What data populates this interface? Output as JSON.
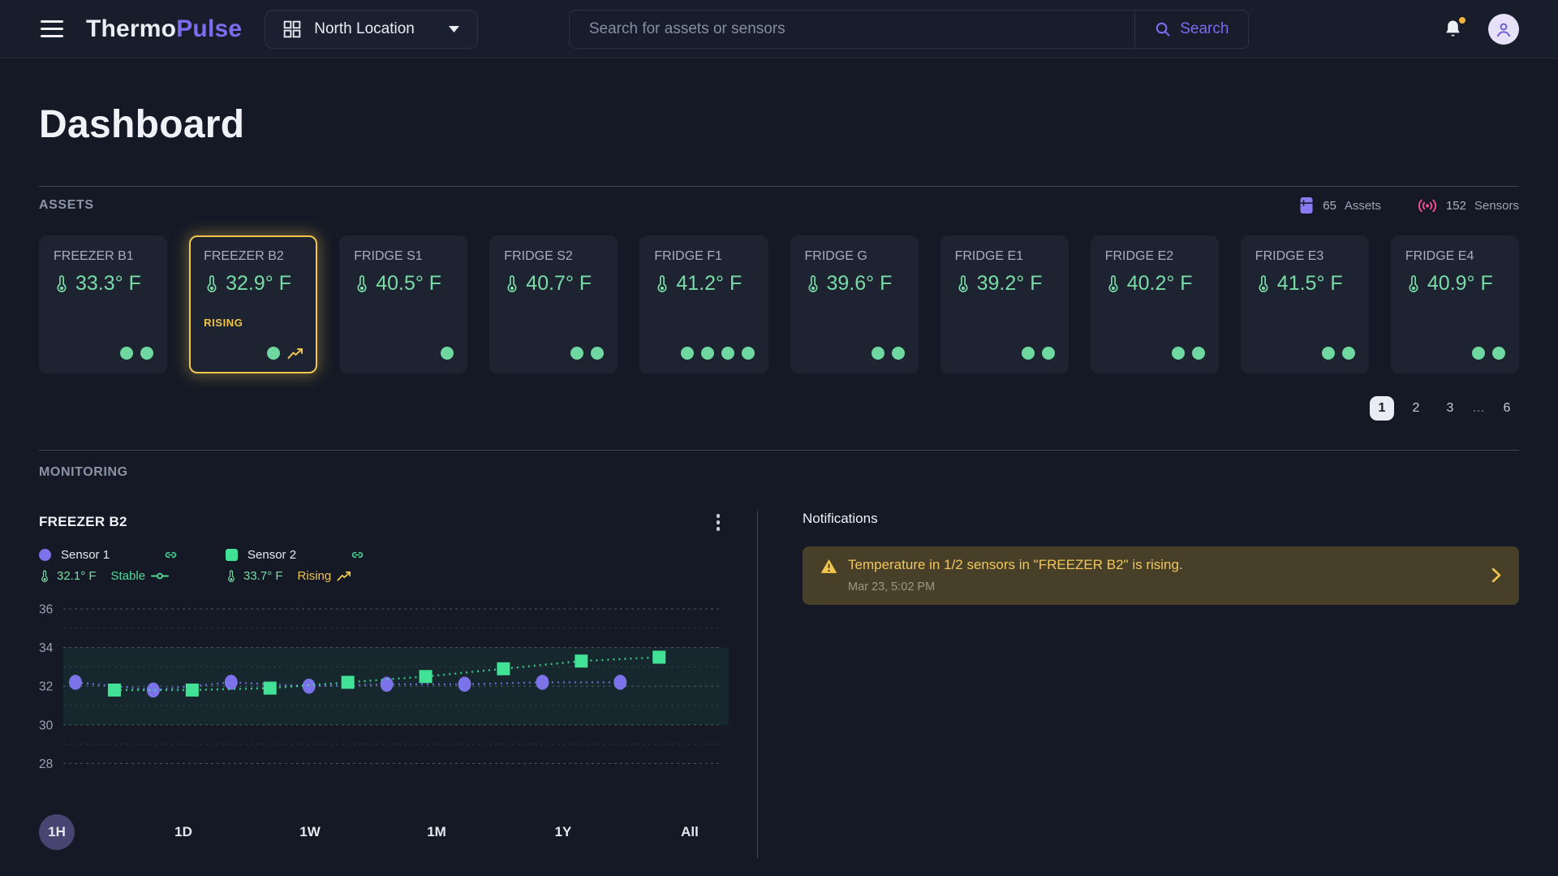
{
  "navbar": {
    "brand": {
      "part1": "Thermo",
      "part2": "Pulse"
    },
    "location_selector": {
      "label": "North Location"
    },
    "search": {
      "placeholder": "Search for assets or sensors",
      "button_label": "Search"
    }
  },
  "page": {
    "title": "Dashboard"
  },
  "assets": {
    "section_label": "ASSETS",
    "stats": [
      {
        "icon": "fridge-icon",
        "value": "65",
        "label": "Assets"
      },
      {
        "icon": "signal-icon",
        "value": "152",
        "label": "Sensors"
      }
    ],
    "cards": [
      {
        "name": "FREEZER B1",
        "temp": "33.3° F",
        "dots": 2,
        "active": false,
        "status": "",
        "trend": false
      },
      {
        "name": "FREEZER B2",
        "temp": "32.9° F",
        "dots": 1,
        "active": true,
        "status": "RISING",
        "trend": true
      },
      {
        "name": "FRIDGE S1",
        "temp": "40.5° F",
        "dots": 1,
        "active": false,
        "status": "",
        "trend": false
      },
      {
        "name": "FRIDGE S2",
        "temp": "40.7° F",
        "dots": 2,
        "active": false,
        "status": "",
        "trend": false
      },
      {
        "name": "FRIDGE F1",
        "temp": "41.2° F",
        "dots": 4,
        "active": false,
        "status": "",
        "trend": false
      },
      {
        "name": "FRIDGE G",
        "temp": "39.6° F",
        "dots": 2,
        "active": false,
        "status": "",
        "trend": false
      },
      {
        "name": "FRIDGE E1",
        "temp": "39.2° F",
        "dots": 2,
        "active": false,
        "status": "",
        "trend": false
      },
      {
        "name": "FRIDGE E2",
        "temp": "40.2° F",
        "dots": 2,
        "active": false,
        "status": "",
        "trend": false
      },
      {
        "name": "FRIDGE E3",
        "temp": "41.5° F",
        "dots": 2,
        "active": false,
        "status": "",
        "trend": false
      },
      {
        "name": "FRIDGE E4",
        "temp": "40.9° F",
        "dots": 2,
        "active": false,
        "status": "",
        "trend": false
      }
    ],
    "pagination": {
      "pages": [
        "1",
        "2",
        "3",
        "…",
        "6"
      ],
      "active": "1"
    }
  },
  "monitoring": {
    "section_label": "MONITORING",
    "panel_title": "FREEZER B2",
    "legend": [
      {
        "name": "Sensor 1",
        "temp": "32.1° F",
        "trend": "Stable",
        "marker": "circle",
        "color": "#7c72e9"
      },
      {
        "name": "Sensor 2",
        "temp": "33.7° F",
        "trend": "Rising",
        "marker": "square",
        "color": "#41e296"
      }
    ],
    "time_ranges": [
      "1H",
      "1D",
      "1W",
      "1M",
      "1Y",
      "All"
    ],
    "active_range": "1H"
  },
  "notifications": {
    "title": "Notifications",
    "items": [
      {
        "message": "Temperature in 1/2 sensors in \"FREEZER B2\" is rising.",
        "time": "Mar 23, 5:02 PM"
      }
    ]
  },
  "chart_data": {
    "type": "line",
    "title": "FREEZER B2",
    "xlabel": "",
    "ylabel": "",
    "ylim": [
      27,
      37
    ],
    "yticks": [
      28,
      30,
      32,
      34,
      36
    ],
    "xticklabels": [],
    "grid": "dotted-horizontal",
    "safe_band": [
      30,
      34
    ],
    "legend_position": "top-left",
    "series": [
      {
        "name": "Sensor 1",
        "color": "#7c72e9",
        "marker": "circle",
        "style": "dotted",
        "x": [
          0,
          2,
          4,
          6,
          8,
          10,
          12,
          14
        ],
        "values": [
          32.2,
          31.8,
          32.2,
          32.0,
          32.1,
          32.1,
          32.2,
          32.2
        ]
      },
      {
        "name": "Sensor 2",
        "color": "#41e296",
        "marker": "square",
        "style": "dotted",
        "x": [
          1,
          3,
          5,
          7,
          9,
          11,
          13,
          15
        ],
        "values": [
          31.8,
          31.8,
          31.9,
          32.2,
          32.5,
          32.9,
          33.3,
          33.5
        ]
      }
    ]
  },
  "colors": {
    "accent_purple": "#7c6cf0",
    "green": "#6fd8a1",
    "yellow": "#f0c64f",
    "pink": "#ee4d96",
    "page_bg": "#141925",
    "card_bg": "#1d2330",
    "notification_bg": "#473f27",
    "safe_band_fill": "rgba(62,224,150,0.07)"
  }
}
